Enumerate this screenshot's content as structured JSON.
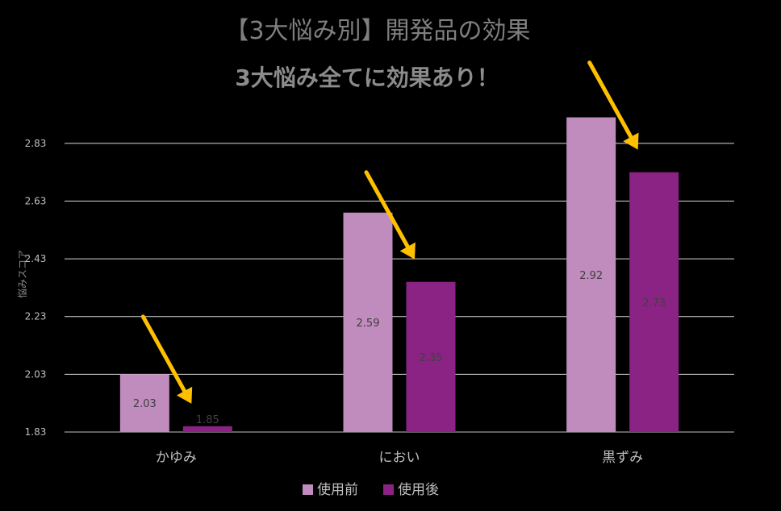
{
  "chart_data": {
    "type": "bar",
    "title": "【3大悩み別】開発品の効果",
    "subtitle": "3大悩み全てに効果あり！",
    "ylabel": "悩みスコア",
    "categories": [
      "かゆみ",
      "におい",
      "黒ずみ"
    ],
    "series": [
      {
        "name": "使用前",
        "values": [
          2.03,
          2.59,
          2.92
        ],
        "value_labels": [
          "2.03",
          "2.59",
          "2.92"
        ],
        "color": "#c08bbd"
      },
      {
        "name": "使用後",
        "values": [
          1.85,
          2.35,
          2.73
        ],
        "value_labels": [
          "1.85",
          "2.35",
          "2.73"
        ],
        "color": "#8a2383"
      }
    ],
    "yticks": [
      "1.83",
      "2.03",
      "2.23",
      "2.43",
      "2.63",
      "2.83"
    ],
    "ylim": [
      1.83,
      2.93
    ],
    "grid": true,
    "legend": "bottom",
    "annotations": "yellow downward arrows pointing at each 使用後 bar",
    "arrow_color": "#ffc000"
  }
}
